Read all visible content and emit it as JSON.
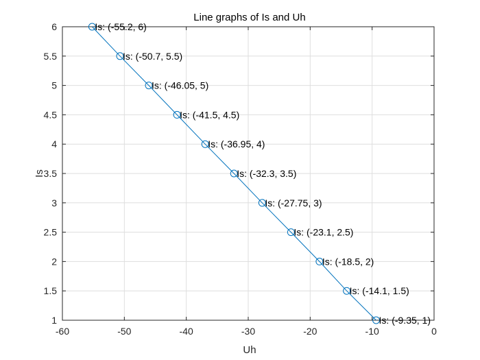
{
  "chart_data": {
    "type": "line",
    "title": "Line graphs of Is and Uh",
    "xlabel": "Uh",
    "ylabel": "Is",
    "xlim": [
      -60,
      0
    ],
    "ylim": [
      1,
      6
    ],
    "xticks": [
      -60,
      -50,
      -40,
      -30,
      -20,
      -10,
      0
    ],
    "yticks": [
      1,
      1.5,
      2,
      2.5,
      3,
      3.5,
      4,
      4.5,
      5,
      5.5,
      6
    ],
    "grid": true,
    "series_color": "#0072BD",
    "marker": "circle",
    "series": [
      {
        "x": [
          -55.2,
          -50.7,
          -46.05,
          -41.5,
          -36.95,
          -32.3,
          -27.75,
          -23.1,
          -18.5,
          -14.1,
          -9.35
        ],
        "y": [
          6,
          5.5,
          5,
          4.5,
          4,
          3.5,
          3,
          2.5,
          2,
          1.5,
          1
        ]
      }
    ],
    "data_labels": [
      "Is: (-55.2, 6)",
      "Is: (-50.7, 5.5)",
      "Is: (-46.05, 5)",
      "Is: (-41.5, 4.5)",
      "Is: (-36.95, 4)",
      "Is: (-32.3, 3.5)",
      "Is: (-27.75, 3)",
      "Is: (-23.1, 2.5)",
      "Is: (-18.5, 2)",
      "Is: (-14.1, 1.5)",
      "Is: (-9.35, 1)"
    ]
  }
}
